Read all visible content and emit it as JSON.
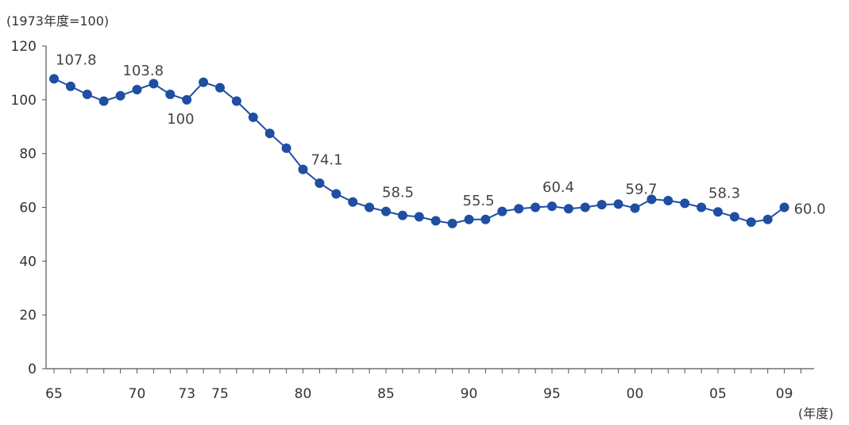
{
  "chart_data": {
    "type": "line",
    "title": "",
    "xlabel": "(年度)",
    "ylabel": "(1973年度=100)",
    "ylim": [
      0,
      120
    ],
    "yticks": [
      "0",
      "20",
      "40",
      "60",
      "80",
      "100",
      "120"
    ],
    "xticks": [
      {
        "year": 1965,
        "label": "65"
      },
      {
        "year": 1970,
        "label": "70"
      },
      {
        "year": 1973,
        "label": "73"
      },
      {
        "year": 1975,
        "label": "75"
      },
      {
        "year": 1980,
        "label": "80"
      },
      {
        "year": 1985,
        "label": "85"
      },
      {
        "year": 1990,
        "label": "90"
      },
      {
        "year": 1995,
        "label": "95"
      },
      {
        "year": 2000,
        "label": "00"
      },
      {
        "year": 2005,
        "label": "05"
      },
      {
        "year": 2009,
        "label": "09"
      }
    ],
    "grid": false,
    "legend": "none",
    "series_color": "#1f4ea3",
    "series": [
      {
        "x": [
          1965,
          1966,
          1967,
          1968,
          1969,
          1970,
          1971,
          1972,
          1973,
          1974,
          1975,
          1976,
          1977,
          1978,
          1979,
          1980,
          1981,
          1982,
          1983,
          1984,
          1985,
          1986,
          1987,
          1988,
          1989,
          1990,
          1991,
          1992,
          1993,
          1994,
          1995,
          1996,
          1997,
          1998,
          1999,
          2000,
          2001,
          2002,
          2003,
          2004,
          2005,
          2006,
          2007,
          2008,
          2009
        ],
        "values": [
          107.8,
          105,
          102,
          99.5,
          101.5,
          103.8,
          106,
          102,
          100,
          106.5,
          104.5,
          99.5,
          93.5,
          87.5,
          82,
          74.1,
          69,
          65,
          62,
          60,
          58.5,
          57,
          56.5,
          55,
          54,
          55.5,
          55.5,
          58.5,
          59.5,
          60,
          60.4,
          59.5,
          60,
          61,
          61.2,
          59.7,
          63,
          62.5,
          61.5,
          60,
          58.3,
          56.5,
          54.5,
          55.5,
          60.0
        ]
      }
    ],
    "annotations": [
      {
        "year": 1965,
        "text": "107.8"
      },
      {
        "year": 1970,
        "text": "103.8"
      },
      {
        "year": 1973,
        "text": "100"
      },
      {
        "year": 1980,
        "text": "74.1"
      },
      {
        "year": 1985,
        "text": "58.5"
      },
      {
        "year": 1990,
        "text": "55.5"
      },
      {
        "year": 1995,
        "text": "60.4"
      },
      {
        "year": 2000,
        "text": "59.7"
      },
      {
        "year": 2005,
        "text": "58.3"
      },
      {
        "year": 2009,
        "text": "60.0"
      }
    ]
  }
}
